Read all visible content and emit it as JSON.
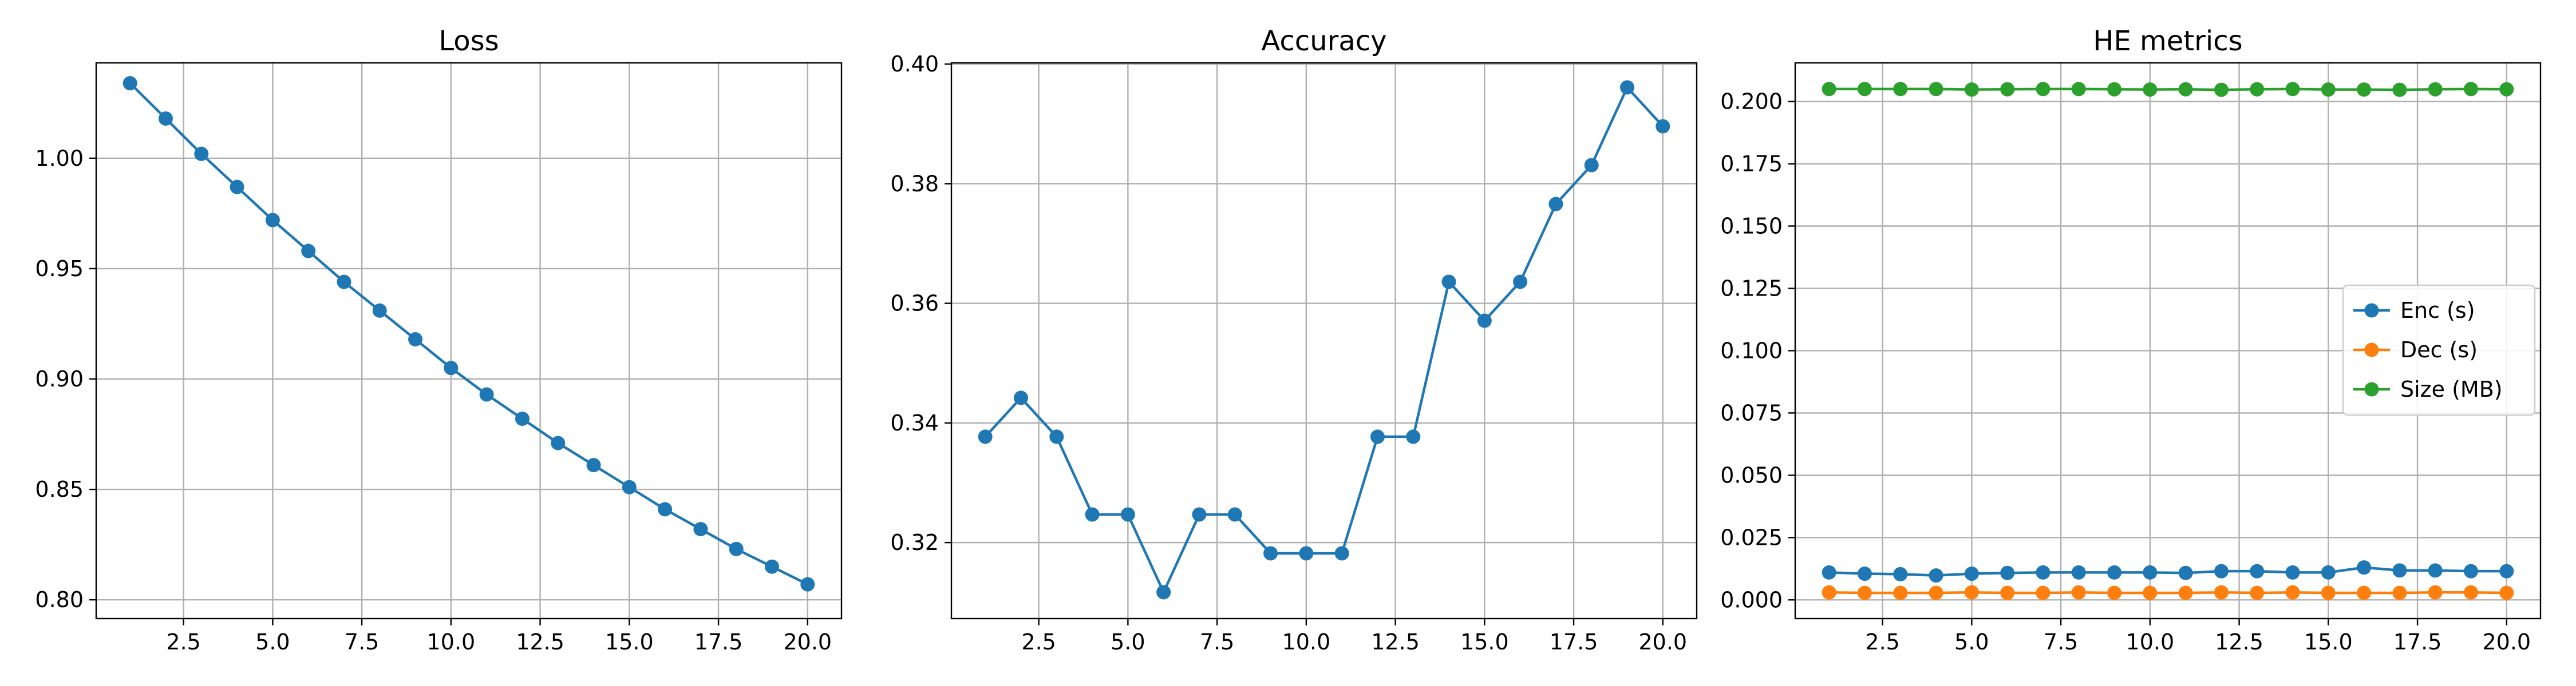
{
  "chart_data": [
    {
      "type": "line",
      "title": "Loss",
      "xlabel": "",
      "ylabel": "",
      "xlim": [
        0.05,
        20.95
      ],
      "ylim": [
        0.7915,
        1.0432
      ],
      "xticks": [
        2.5,
        5.0,
        7.5,
        10.0,
        12.5,
        15.0,
        17.5,
        20.0
      ],
      "xtick_labels": [
        "2.5",
        "5.0",
        "7.5",
        "10.0",
        "12.5",
        "15.0",
        "17.5",
        "20.0"
      ],
      "yticks": [
        0.8,
        0.85,
        0.9,
        0.95,
        1.0
      ],
      "ytick_labels": [
        "0.80",
        "0.85",
        "0.90",
        "0.95",
        "1.00"
      ],
      "grid": true,
      "legend": null,
      "x": [
        1,
        2,
        3,
        4,
        5,
        6,
        7,
        8,
        9,
        10,
        11,
        12,
        13,
        14,
        15,
        16,
        17,
        18,
        19,
        20
      ],
      "series": [
        {
          "color": "#1f77b4",
          "values": [
            1.034,
            1.018,
            1.002,
            0.987,
            0.972,
            0.958,
            0.944,
            0.931,
            0.918,
            0.905,
            0.893,
            0.882,
            0.871,
            0.861,
            0.851,
            0.841,
            0.832,
            0.823,
            0.815,
            0.807
          ]
        }
      ]
    },
    {
      "type": "line",
      "title": "Accuracy",
      "xlabel": "",
      "ylabel": "",
      "xlim": [
        0.05,
        20.95
      ],
      "ylim": [
        0.3073,
        0.4002
      ],
      "xticks": [
        2.5,
        5.0,
        7.5,
        10.0,
        12.5,
        15.0,
        17.5,
        20.0
      ],
      "xtick_labels": [
        "2.5",
        "5.0",
        "7.5",
        "10.0",
        "12.5",
        "15.0",
        "17.5",
        "20.0"
      ],
      "yticks": [
        0.32,
        0.34,
        0.36,
        0.38,
        0.4
      ],
      "ytick_labels": [
        "0.32",
        "0.34",
        "0.36",
        "0.38",
        "0.40"
      ],
      "grid": true,
      "legend": null,
      "x": [
        1,
        2,
        3,
        4,
        5,
        6,
        7,
        8,
        9,
        10,
        11,
        12,
        13,
        14,
        15,
        16,
        17,
        18,
        19,
        20
      ],
      "series": [
        {
          "color": "#1f77b4",
          "values": [
            0.3377,
            0.3442,
            0.3377,
            0.3247,
            0.3247,
            0.3117,
            0.3247,
            0.3247,
            0.3182,
            0.3182,
            0.3182,
            0.3377,
            0.3377,
            0.3636,
            0.3571,
            0.3636,
            0.3766,
            0.3831,
            0.3961,
            0.3896
          ]
        }
      ]
    },
    {
      "type": "line",
      "title": "HE metrics",
      "xlabel": "",
      "ylabel": "",
      "xlim": [
        0.05,
        20.95
      ],
      "ylim": [
        -0.0075,
        0.2155
      ],
      "xticks": [
        2.5,
        5.0,
        7.5,
        10.0,
        12.5,
        15.0,
        17.5,
        20.0
      ],
      "xtick_labels": [
        "2.5",
        "5.0",
        "7.5",
        "10.0",
        "12.5",
        "15.0",
        "17.5",
        "20.0"
      ],
      "yticks": [
        0.0,
        0.025,
        0.05,
        0.075,
        0.1,
        0.125,
        0.15,
        0.175,
        0.2
      ],
      "ytick_labels": [
        "0.000",
        "0.025",
        "0.050",
        "0.075",
        "0.100",
        "0.125",
        "0.150",
        "0.175",
        "0.200"
      ],
      "grid": true,
      "legend": "center-right",
      "x": [
        1,
        2,
        3,
        4,
        5,
        6,
        7,
        8,
        9,
        10,
        11,
        12,
        13,
        14,
        15,
        16,
        17,
        18,
        19,
        20
      ],
      "series": [
        {
          "name": "Enc (s)",
          "color": "#1f77b4",
          "values": [
            0.011,
            0.0105,
            0.0103,
            0.0098,
            0.0105,
            0.0108,
            0.011,
            0.011,
            0.011,
            0.011,
            0.0108,
            0.0115,
            0.0115,
            0.011,
            0.011,
            0.013,
            0.0118,
            0.0118,
            0.0115,
            0.0115
          ]
        },
        {
          "name": "Dec (s)",
          "color": "#ff7f0e",
          "values": [
            0.003,
            0.0028,
            0.0028,
            0.0028,
            0.003,
            0.0028,
            0.0028,
            0.003,
            0.0028,
            0.0028,
            0.0028,
            0.003,
            0.0028,
            0.003,
            0.0028,
            0.0028,
            0.0028,
            0.003,
            0.003,
            0.0028
          ]
        },
        {
          "name": "Size (MB)",
          "color": "#2ca02c",
          "values": [
            0.205,
            0.205,
            0.205,
            0.205,
            0.2048,
            0.2049,
            0.205,
            0.205,
            0.2049,
            0.2048,
            0.2049,
            0.2047,
            0.2049,
            0.205,
            0.2048,
            0.2048,
            0.2047,
            0.2049,
            0.205,
            0.2049
          ]
        }
      ]
    }
  ]
}
